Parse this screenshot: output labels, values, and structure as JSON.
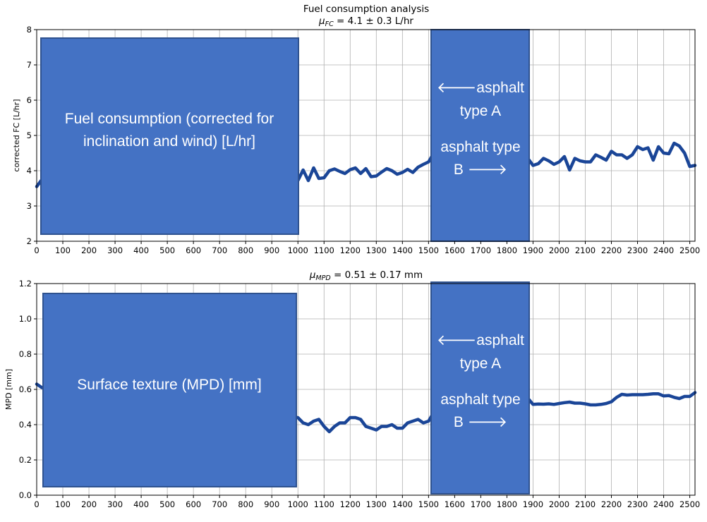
{
  "chart_data": [
    {
      "type": "line",
      "title": "Fuel consumption analysis",
      "subtitle": "μ_FC = 4.1 ± 0.3 L/hr",
      "subtitle_parts": {
        "mu": "μ",
        "sub": "FC",
        "rest": " = 4.1 ± 0.3 L/hr"
      },
      "xlabel": "",
      "ylabel": "corrected FC [L/hr]",
      "xlim": [
        0,
        2520
      ],
      "ylim": [
        2,
        8
      ],
      "x_ticks": [
        0,
        100,
        200,
        300,
        400,
        500,
        600,
        700,
        800,
        900,
        1000,
        1100,
        1200,
        1300,
        1400,
        1500,
        1600,
        1700,
        1800,
        1900,
        2000,
        2100,
        2200,
        2300,
        2400,
        2500
      ],
      "y_ticks": [
        2,
        3,
        4,
        5,
        6,
        7,
        8
      ],
      "y_tick_labels": [
        "2",
        "3",
        "4",
        "5",
        "6",
        "7",
        "8"
      ],
      "grid": true,
      "line_color": "#1A4597",
      "series": [
        {
          "x": [
            0,
            20,
            1000,
            1020,
            1040,
            1060,
            1080,
            1100,
            1120,
            1140,
            1160,
            1180,
            1200,
            1220,
            1240,
            1260,
            1280,
            1300,
            1320,
            1340,
            1360,
            1380,
            1400,
            1420,
            1440,
            1460,
            1480,
            1500,
            1520,
            1880,
            1900,
            1920,
            1940,
            1960,
            1980,
            2000,
            2020,
            2040,
            2060,
            2080,
            2100,
            2120,
            2140,
            2160,
            2180,
            2200,
            2220,
            2240,
            2260,
            2280,
            2300,
            2320,
            2340,
            2360,
            2380,
            2400,
            2420,
            2440,
            2460,
            2480,
            2500,
            2520
          ],
          "y": [
            3.55,
            3.75,
            3.72,
            4.02,
            3.72,
            4.08,
            3.78,
            3.8,
            4.0,
            4.05,
            3.98,
            3.92,
            4.03,
            4.08,
            3.92,
            4.06,
            3.83,
            3.85,
            3.96,
            4.06,
            4.0,
            3.9,
            3.95,
            4.04,
            3.95,
            4.1,
            4.18,
            4.25,
            4.5,
            4.35,
            4.15,
            4.2,
            4.35,
            4.28,
            4.18,
            4.25,
            4.4,
            4.02,
            4.35,
            4.28,
            4.25,
            4.25,
            4.45,
            4.38,
            4.3,
            4.55,
            4.45,
            4.45,
            4.35,
            4.45,
            4.68,
            4.6,
            4.65,
            4.3,
            4.68,
            4.5,
            4.48,
            4.78,
            4.7,
            4.5,
            4.12,
            4.15
          ]
        }
      ],
      "overlays": [
        {
          "lines": [
            "Fuel consumption (corrected for",
            "inclination and wind) [L/hr]"
          ]
        },
        {
          "lines": [
            "🡐asphalt",
            "type A",
            "asphalt type",
            "B 🡒"
          ]
        }
      ]
    },
    {
      "type": "line",
      "title": "",
      "subtitle": "μ_MPD = 0.51 ± 0.17 mm",
      "subtitle_parts": {
        "mu": "μ",
        "sub": "MPD",
        "rest": " = 0.51 ± 0.17 mm"
      },
      "xlabel": "",
      "ylabel": "MPD [mm]",
      "xlim": [
        0,
        2520
      ],
      "ylim": [
        0,
        1.2
      ],
      "x_ticks": [
        0,
        100,
        200,
        300,
        400,
        500,
        600,
        700,
        800,
        900,
        1000,
        1100,
        1200,
        1300,
        1400,
        1500,
        1600,
        1700,
        1800,
        1900,
        2000,
        2100,
        2200,
        2300,
        2400,
        2500
      ],
      "y_ticks": [
        0,
        0.2,
        0.4,
        0.6,
        0.8,
        1.0,
        1.2
      ],
      "y_tick_labels": [
        "0.0",
        "0.2",
        "0.4",
        "0.6",
        "0.8",
        "1.0",
        "1.2"
      ],
      "grid": true,
      "line_color": "#1A4597",
      "series": [
        {
          "x": [
            0,
            20,
            1000,
            1020,
            1040,
            1060,
            1080,
            1100,
            1120,
            1140,
            1160,
            1180,
            1200,
            1220,
            1240,
            1260,
            1280,
            1300,
            1320,
            1340,
            1360,
            1380,
            1400,
            1420,
            1440,
            1460,
            1480,
            1500,
            1520,
            1880,
            1900,
            1920,
            1940,
            1960,
            1980,
            2000,
            2020,
            2040,
            2060,
            2080,
            2100,
            2120,
            2140,
            2160,
            2180,
            2200,
            2220,
            2240,
            2260,
            2280,
            2300,
            2320,
            2340,
            2360,
            2380,
            2400,
            2420,
            2440,
            2460,
            2480,
            2500,
            2520
          ],
          "y": [
            0.63,
            0.61,
            0.44,
            0.41,
            0.4,
            0.42,
            0.43,
            0.39,
            0.36,
            0.39,
            0.41,
            0.41,
            0.44,
            0.44,
            0.43,
            0.39,
            0.38,
            0.37,
            0.39,
            0.39,
            0.4,
            0.38,
            0.38,
            0.41,
            0.42,
            0.43,
            0.41,
            0.42,
            0.47,
            0.55,
            0.515,
            0.517,
            0.516,
            0.518,
            0.515,
            0.52,
            0.525,
            0.528,
            0.522,
            0.522,
            0.518,
            0.512,
            0.512,
            0.515,
            0.52,
            0.53,
            0.555,
            0.572,
            0.568,
            0.57,
            0.57,
            0.57,
            0.572,
            0.575,
            0.575,
            0.563,
            0.565,
            0.555,
            0.548,
            0.56,
            0.56,
            0.582
          ]
        }
      ],
      "overlays": [
        {
          "lines": [
            "Surface texture (MPD) [mm]"
          ]
        },
        {
          "lines": [
            "🡐asphalt",
            "type A",
            "asphalt type",
            "B 🡒"
          ]
        }
      ]
    }
  ]
}
